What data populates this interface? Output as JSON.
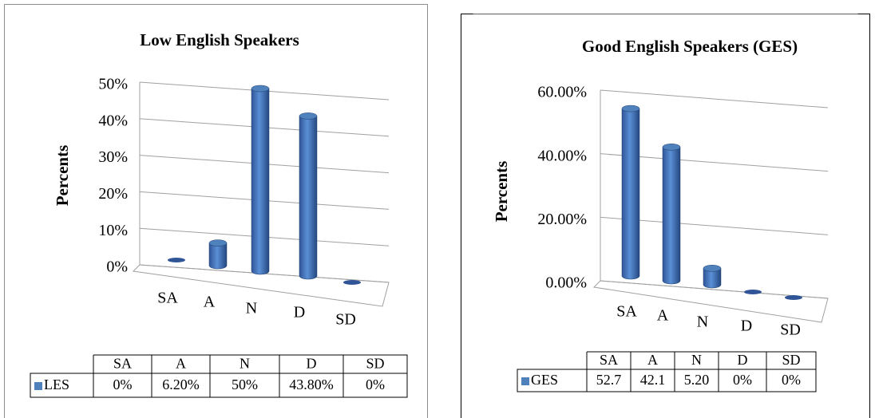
{
  "chart_data": [
    {
      "type": "bar",
      "title": "Low English Speakers",
      "y_label": "Percents",
      "categories": [
        "SA",
        "A",
        "N",
        "D",
        "SD"
      ],
      "series": [
        {
          "name": "LES",
          "color": "#4f81bd",
          "values": [
            0,
            6.2,
            50,
            43.8,
            0
          ],
          "value_labels": [
            "0%",
            "6.20%",
            "50%",
            "43.80%",
            "0%"
          ]
        }
      ],
      "ylim": [
        0,
        50
      ],
      "yticks": [
        {
          "value": 0,
          "label": "0%"
        },
        {
          "value": 10,
          "label": "10%"
        },
        {
          "value": 20,
          "label": "20%"
        },
        {
          "value": 30,
          "label": "30%"
        },
        {
          "value": 40,
          "label": "40%"
        },
        {
          "value": 50,
          "label": "50%"
        }
      ],
      "grid": true
    },
    {
      "type": "bar",
      "title": "Good English Speakers (GES)",
      "y_label": "Percents",
      "categories": [
        "SA",
        "A",
        "N",
        "D",
        "SD"
      ],
      "series": [
        {
          "name": "GES",
          "color": "#4f81bd",
          "values": [
            52.7,
            42.1,
            5.2,
            0,
            0
          ],
          "value_labels": [
            "52.7",
            "42.1",
            "5.20",
            "0%",
            "0%"
          ]
        }
      ],
      "ylim": [
        0,
        60
      ],
      "yticks": [
        {
          "value": 0,
          "label": "0.00%"
        },
        {
          "value": 20,
          "label": "20.00%"
        },
        {
          "value": 40,
          "label": "40.00%"
        },
        {
          "value": 60,
          "label": "60.00%"
        }
      ],
      "grid": true
    }
  ]
}
